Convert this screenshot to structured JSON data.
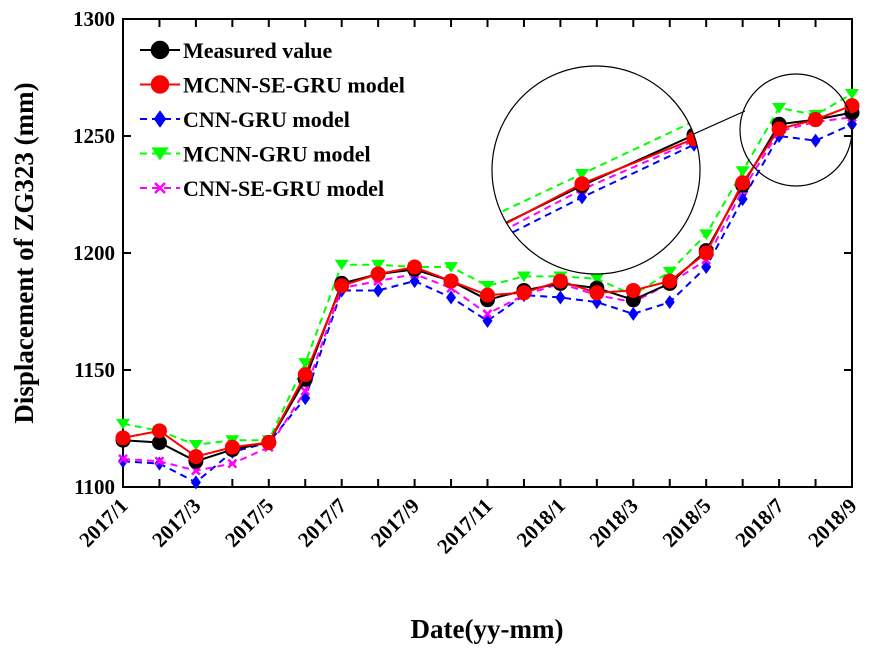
{
  "chart_data": {
    "type": "line",
    "xlabel": "Date(yy-mm)",
    "ylabel": "Displacement of ZG323 (mm)",
    "ylim": [
      1100,
      1300
    ],
    "yticks": [
      1100,
      1150,
      1200,
      1250,
      1300
    ],
    "x": [
      "2017/1",
      "2017/2",
      "2017/3",
      "2017/4",
      "2017/5",
      "2017/6",
      "2017/7",
      "2017/8",
      "2017/9",
      "2017/10",
      "2017/11",
      "2017/12",
      "2018/1",
      "2018/2",
      "2018/3",
      "2018/4",
      "2018/5",
      "2018/6",
      "2018/7",
      "2018/8",
      "2018/9"
    ],
    "xtick_labels": [
      "2017/1",
      "2017/3",
      "2017/5",
      "2017/7",
      "2017/9",
      "2017/11",
      "2018/1",
      "2018/3",
      "2018/5",
      "2018/7",
      "2018/9"
    ],
    "legend_position": "top-left",
    "grid": false,
    "series": [
      {
        "name": "Measured value",
        "color": "#000000",
        "dash": "solid",
        "marker": "circle",
        "values": [
          1120,
          1119,
          1111,
          1116,
          1119,
          1146,
          1187,
          1191,
          1193,
          1188,
          1180,
          1184,
          1187,
          1185,
          1180,
          1187,
          1201,
          1229,
          1255,
          1257,
          1260
        ]
      },
      {
        "name": "MCNN-SE-GRU model",
        "color": "#ff0000",
        "dash": "solid",
        "marker": "circle",
        "values": [
          1121,
          1124,
          1113,
          1117,
          1119,
          1148,
          1186,
          1191,
          1194,
          1188,
          1182,
          1183,
          1188,
          1183,
          1184,
          1188,
          1200,
          1230,
          1253,
          1257,
          1263
        ]
      },
      {
        "name": "CNN-GRU model",
        "color": "#0000ff",
        "dash": "dashed",
        "marker": "diamond",
        "values": [
          1111,
          1110,
          1102,
          1115,
          1119,
          1138,
          1184,
          1184,
          1188,
          1181,
          1171,
          1182,
          1181,
          1179,
          1174,
          1179,
          1194,
          1223,
          1250,
          1248,
          1255
        ]
      },
      {
        "name": "MCNN-GRU model",
        "color": "#00ff00",
        "dash": "dashed",
        "marker": "triangle-down",
        "values": [
          1127,
          1124,
          1118,
          1120,
          1120,
          1153,
          1195,
          1195,
          1194,
          1194,
          1186,
          1190,
          1190,
          1189,
          1182,
          1192,
          1208,
          1235,
          1262,
          1259,
          1268
        ]
      },
      {
        "name": "CNN-SE-GRU model",
        "color": "#ff00ff",
        "dash": "dashed",
        "marker": "x",
        "values": [
          1112,
          1111,
          1107,
          1110,
          1117,
          1141,
          1185,
          1188,
          1191,
          1185,
          1174,
          1182,
          1187,
          1182,
          1179,
          1187,
          1197,
          1227,
          1252,
          1256,
          1258
        ]
      }
    ],
    "inset": {
      "type": "zoom-circle",
      "source": "2018/7 region"
    }
  }
}
